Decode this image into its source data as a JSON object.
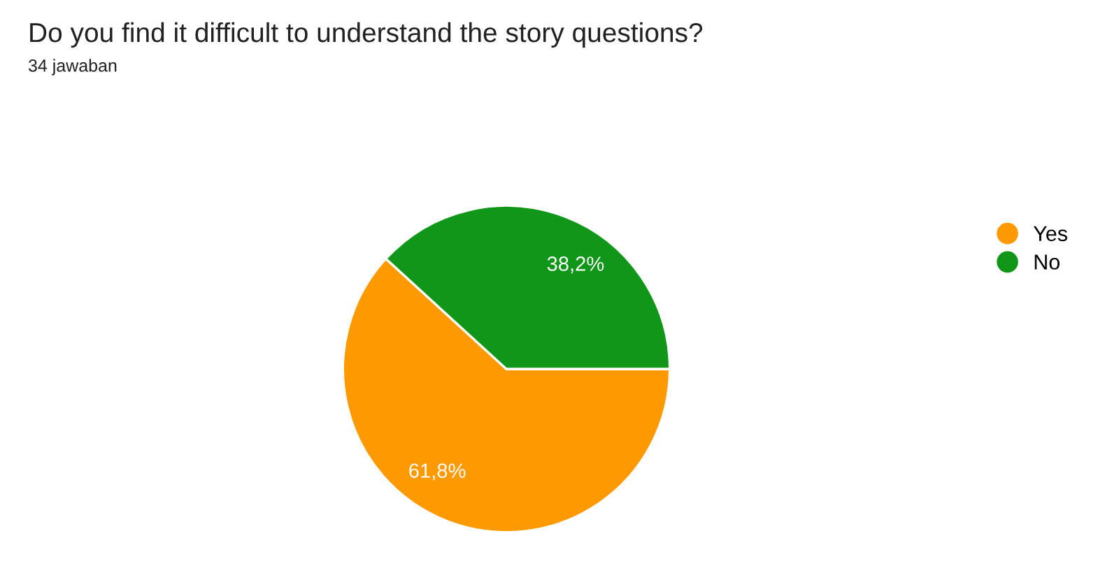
{
  "chart_data": {
    "type": "pie",
    "title": "Do you find it difficult to understand the story questions?",
    "subtitle": "34 jawaban",
    "categories": [
      "Yes",
      "No"
    ],
    "values": [
      61.8,
      38.2
    ],
    "colors": [
      "#ff9900",
      "#109618"
    ],
    "value_labels": [
      "61,8%",
      "38,2%"
    ],
    "legend": "right"
  }
}
